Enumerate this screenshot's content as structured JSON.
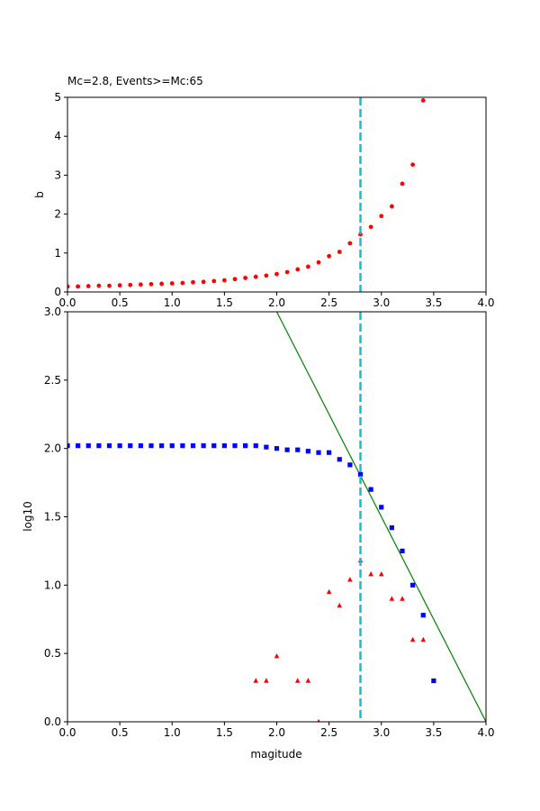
{
  "chart_data": [
    {
      "type": "scatter",
      "title": "Mc=2.8, Events>=Mc:65",
      "xlabel": "",
      "ylabel": "b",
      "xlim": [
        0,
        4
      ],
      "ylim": [
        0,
        5
      ],
      "xticks": [
        "0.0",
        "0.5",
        "1.0",
        "1.5",
        "2.0",
        "2.5",
        "3.0",
        "3.5",
        "4.0"
      ],
      "yticks": [
        "0",
        "1",
        "2",
        "3",
        "4",
        "5"
      ],
      "grid": false,
      "vline": {
        "x": 2.8,
        "color": "#17becf",
        "style": "dashed"
      },
      "series": [
        {
          "marker": "circle",
          "color": "#ff0000",
          "x": [
            0.0,
            0.1,
            0.2,
            0.3,
            0.4,
            0.5,
            0.6,
            0.7,
            0.8,
            0.9,
            1.0,
            1.1,
            1.2,
            1.3,
            1.4,
            1.5,
            1.6,
            1.7,
            1.8,
            1.9,
            2.0,
            2.1,
            2.2,
            2.3,
            2.4,
            2.5,
            2.6,
            2.7,
            2.8,
            2.9,
            3.0,
            3.1,
            3.2,
            3.3,
            3.4
          ],
          "y": [
            0.14,
            0.14,
            0.15,
            0.16,
            0.16,
            0.17,
            0.18,
            0.19,
            0.2,
            0.21,
            0.22,
            0.23,
            0.25,
            0.26,
            0.28,
            0.3,
            0.33,
            0.36,
            0.39,
            0.42,
            0.46,
            0.51,
            0.58,
            0.65,
            0.76,
            0.92,
            1.03,
            1.25,
            1.48,
            1.67,
            1.95,
            2.2,
            2.78,
            3.27,
            4.92
          ]
        }
      ]
    },
    {
      "type": "scatter",
      "title": "",
      "xlabel": "magitude",
      "ylabel": "log10",
      "xlim": [
        0,
        4
      ],
      "ylim": [
        0,
        3
      ],
      "xticks": [
        "0.0",
        "0.5",
        "1.0",
        "1.5",
        "2.0",
        "2.5",
        "3.0",
        "3.5",
        "4.0"
      ],
      "yticks": [
        "0.0",
        "0.5",
        "1.0",
        "1.5",
        "2.0",
        "2.5",
        "3.0"
      ],
      "grid": false,
      "vline": {
        "x": 2.8,
        "color": "#17becf",
        "style": "dashed"
      },
      "fit_line": {
        "x": [
          2.0,
          4.0
        ],
        "y": [
          3.0,
          0.0
        ],
        "color": "#008000"
      },
      "series": [
        {
          "marker": "square",
          "color": "#0000ff",
          "x": [
            0.0,
            0.1,
            0.2,
            0.3,
            0.4,
            0.5,
            0.6,
            0.7,
            0.8,
            0.9,
            1.0,
            1.1,
            1.2,
            1.3,
            1.4,
            1.5,
            1.6,
            1.7,
            1.8,
            1.9,
            2.0,
            2.1,
            2.2,
            2.3,
            2.4,
            2.5,
            2.6,
            2.7,
            2.8,
            2.9,
            3.0,
            3.1,
            3.2,
            3.3,
            3.4,
            3.5
          ],
          "y": [
            2.02,
            2.02,
            2.02,
            2.02,
            2.02,
            2.02,
            2.02,
            2.02,
            2.02,
            2.02,
            2.02,
            2.02,
            2.02,
            2.02,
            2.02,
            2.02,
            2.02,
            2.02,
            2.02,
            2.01,
            2.0,
            1.99,
            1.99,
            1.98,
            1.97,
            1.97,
            1.92,
            1.88,
            1.81,
            1.7,
            1.57,
            1.42,
            1.25,
            1.0,
            0.78,
            0.3
          ]
        },
        {
          "marker": "triangle",
          "color": "#ff0000",
          "x": [
            1.8,
            1.9,
            2.0,
            2.2,
            2.3,
            2.4,
            2.5,
            2.6,
            2.7,
            2.8,
            2.9,
            3.0,
            3.1,
            3.2,
            3.3,
            3.4
          ],
          "y": [
            0.3,
            0.3,
            0.48,
            0.3,
            0.3,
            0.0,
            0.95,
            0.85,
            1.04,
            1.18,
            1.08,
            1.08,
            0.9,
            0.9,
            0.6,
            0.6
          ]
        }
      ]
    }
  ]
}
